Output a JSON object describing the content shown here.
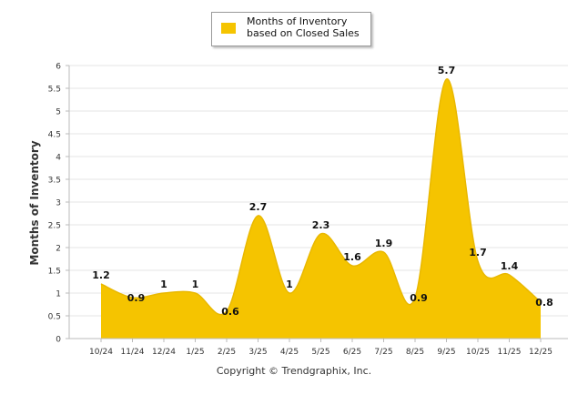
{
  "legend": {
    "label": "Months of Inventory based on Closed Sales",
    "color": "#f5c400"
  },
  "footer": {
    "copyright": "Copyright © Trendgraphix, Inc."
  },
  "chart_data": {
    "type": "area",
    "title": "",
    "xlabel": "",
    "ylabel": "Months of Inventory",
    "ylim": [
      0,
      6
    ],
    "yticks": [
      "0",
      "0.5",
      "1",
      "1.5",
      "2",
      "2.5",
      "3",
      "3.5",
      "4",
      "4.5",
      "5",
      "5.5",
      "6"
    ],
    "grid": true,
    "legend_position": "top",
    "categories": [
      "10/24",
      "11/24",
      "12/24",
      "1/25",
      "2/25",
      "3/25",
      "4/25",
      "5/25",
      "6/25",
      "7/25",
      "8/25",
      "9/25",
      "10/25",
      "11/25",
      "12/25"
    ],
    "series": [
      {
        "name": "Months of Inventory based on Closed Sales",
        "values": [
          1.2,
          0.9,
          1,
          1,
          0.6,
          2.7,
          1,
          2.3,
          1.6,
          1.9,
          0.9,
          5.7,
          1.7,
          1.4,
          0.8
        ],
        "labels": [
          "1.2",
          "0.9",
          "1",
          "1",
          "0.6",
          "2.7",
          "1",
          "2.3",
          "1.6",
          "1.9",
          "0.9",
          "5.7",
          "1.7",
          "1.4",
          "0.8"
        ],
        "color": "#f5c400"
      }
    ]
  }
}
